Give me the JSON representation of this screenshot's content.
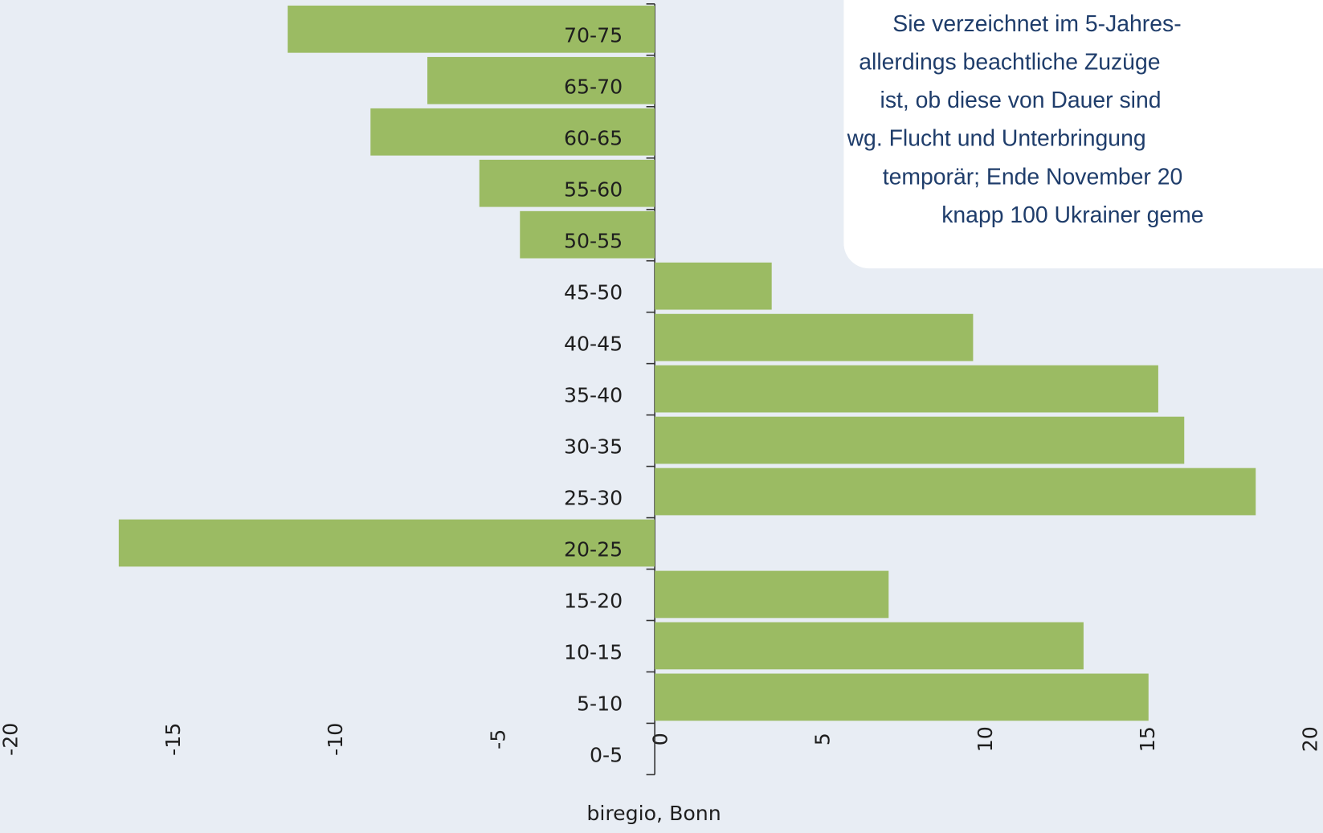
{
  "chart_data": {
    "type": "barh",
    "categories": [
      "0-5",
      "5-10",
      "10-15",
      "15-20",
      "20-25",
      "25-30",
      "30-35",
      "35-40",
      "40-45",
      "45-50",
      "50-55",
      "55-60",
      "60-65",
      "65-70",
      "70-75"
    ],
    "values": [
      0,
      15.2,
      13.2,
      7.2,
      -16.5,
      18.5,
      16.3,
      15.5,
      9.8,
      3.6,
      -4.15,
      -5.4,
      -8.75,
      -7.0,
      -11.3
    ],
    "color": "#9bbb63",
    "xlim": [
      -20,
      20
    ],
    "xticks": [
      -20,
      -15,
      -10,
      -5,
      0,
      5,
      10,
      15,
      20
    ],
    "source": "biregio, Bonn",
    "annotation": [
      "Sie verzeichnet im 5-Jahres-",
      "allerdings beachtliche Zuzüge",
      "ist, ob diese von Dauer sind",
      "wg. Flucht und Unterbringung",
      "temporär; Ende November 20",
      "knapp 100 Ukrainer geme"
    ]
  }
}
